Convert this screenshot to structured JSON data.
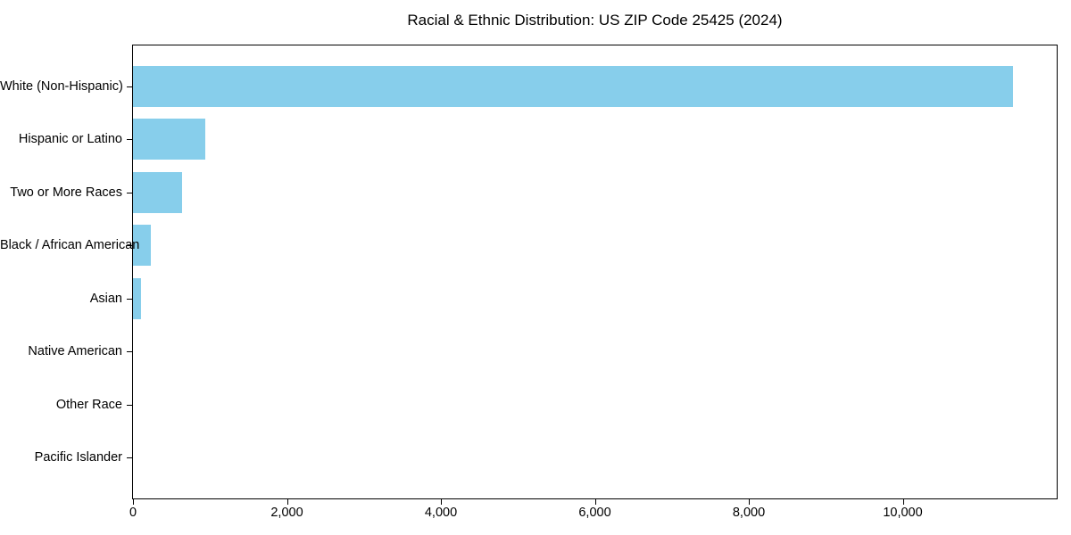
{
  "chart_data": {
    "type": "bar",
    "orientation": "horizontal",
    "title": "Racial & Ethnic Distribution: US ZIP Code 25425 (2024)",
    "categories": [
      "White (Non-Hispanic)",
      "Hispanic or Latino",
      "Two or More Races",
      "Black / African American",
      "Asian",
      "Native American",
      "Other Race",
      "Pacific Islander"
    ],
    "values": [
      11430,
      935,
      635,
      230,
      105,
      0,
      0,
      0
    ],
    "xlabel": "",
    "ylabel": "",
    "xlim": [
      0,
      12000
    ],
    "x_ticks": [
      0,
      2000,
      4000,
      6000,
      8000,
      10000
    ],
    "x_tick_labels": [
      "0",
      "2,000",
      "4,000",
      "6,000",
      "8,000",
      "10,000"
    ],
    "bar_color": "#87CEEB",
    "text_color": "#000000",
    "spine_color": "#000000",
    "background_color": "#ffffff",
    "grid": false,
    "legend": false,
    "bar_height_fraction": 0.78
  }
}
